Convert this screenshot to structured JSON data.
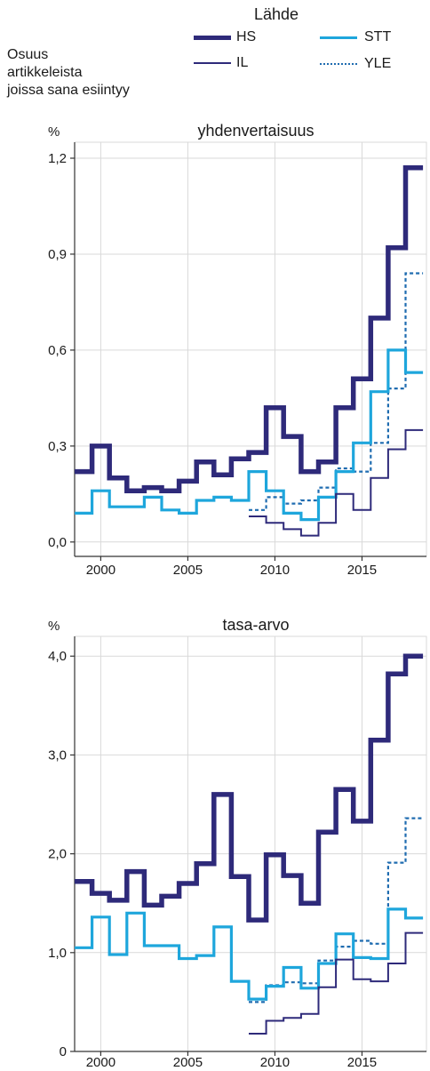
{
  "ylabel": [
    "Osuus",
    "artikkeleista",
    "joissa sana esiintyy"
  ],
  "legend": {
    "title": "Lähde",
    "entries": [
      {
        "name": "HS",
        "color": "#2e2a7a",
        "style": "thick"
      },
      {
        "name": "IL",
        "color": "#2e2a7a",
        "style": "thin"
      },
      {
        "name": "STT",
        "color": "#1ea6dc",
        "style": "medium"
      },
      {
        "name": "YLE",
        "color": "#1f6cb0",
        "style": "dotted"
      }
    ]
  },
  "colors": {
    "HS": "#2e2a7a",
    "IL": "#2e2a7a",
    "STT": "#1ea6dc",
    "YLE": "#1f6cb0",
    "grid": "#d9d9d9",
    "axis": "#333333"
  },
  "chart_data": [
    {
      "type": "line",
      "step": true,
      "title": "yhdenvertaisuus",
      "unit": "%",
      "xlim": [
        1998.5,
        2018.7
      ],
      "ylim": [
        -0.045,
        1.25
      ],
      "yticks": [
        0.0,
        0.3,
        0.6,
        0.9,
        1.2
      ],
      "ytick_labels": [
        "0,0",
        "0,3",
        "0,6",
        "0,9",
        "1,2"
      ],
      "xticks": [
        2000,
        2005,
        2010,
        2015
      ],
      "xtick_labels": [
        "2000",
        "2005",
        "2010",
        "2015"
      ],
      "series": [
        {
          "name": "HS",
          "x": [
            1999,
            2000,
            2001,
            2002,
            2003,
            2004,
            2005,
            2006,
            2007,
            2008,
            2009,
            2010,
            2011,
            2012,
            2013,
            2014,
            2015,
            2016,
            2017,
            2018
          ],
          "values": [
            0.22,
            0.3,
            0.2,
            0.16,
            0.17,
            0.16,
            0.19,
            0.25,
            0.21,
            0.26,
            0.28,
            0.42,
            0.33,
            0.22,
            0.25,
            0.42,
            0.51,
            0.7,
            0.92,
            1.17
          ]
        },
        {
          "name": "IL",
          "x": [
            2009,
            2010,
            2011,
            2012,
            2013,
            2014,
            2015,
            2016,
            2017,
            2018
          ],
          "values": [
            0.08,
            0.06,
            0.04,
            0.02,
            0.06,
            0.15,
            0.1,
            0.2,
            0.29,
            0.35
          ]
        },
        {
          "name": "STT",
          "x": [
            1999,
            2000,
            2001,
            2002,
            2003,
            2004,
            2005,
            2006,
            2007,
            2008,
            2009,
            2010,
            2011,
            2012,
            2013,
            2014,
            2015,
            2016,
            2017,
            2018
          ],
          "values": [
            0.09,
            0.16,
            0.11,
            0.11,
            0.14,
            0.1,
            0.09,
            0.13,
            0.14,
            0.13,
            0.22,
            0.16,
            0.09,
            0.07,
            0.14,
            0.22,
            0.31,
            0.47,
            0.6,
            0.53
          ]
        },
        {
          "name": "YLE",
          "x": [
            2009,
            2010,
            2011,
            2012,
            2013,
            2014,
            2015,
            2016,
            2017,
            2018
          ],
          "values": [
            0.1,
            0.14,
            0.12,
            0.13,
            0.17,
            0.23,
            0.22,
            0.31,
            0.48,
            0.84
          ]
        }
      ]
    },
    {
      "type": "line",
      "step": true,
      "title": "tasa-arvo",
      "unit": "%",
      "xlim": [
        1998.5,
        2018.7
      ],
      "ylim": [
        0,
        4.2
      ],
      "yticks": [
        0,
        1.0,
        2.0,
        3.0,
        4.0
      ],
      "ytick_labels": [
        "0",
        "1,0",
        "2,0",
        "3,0",
        "4,0"
      ],
      "xticks": [
        2000,
        2005,
        2010,
        2015
      ],
      "xtick_labels": [
        "2000",
        "2005",
        "2010",
        "2015"
      ],
      "series": [
        {
          "name": "HS",
          "x": [
            1999,
            2000,
            2001,
            2002,
            2003,
            2004,
            2005,
            2006,
            2007,
            2008,
            2009,
            2010,
            2011,
            2012,
            2013,
            2014,
            2015,
            2016,
            2017,
            2018
          ],
          "values": [
            1.72,
            1.6,
            1.53,
            1.82,
            1.48,
            1.57,
            1.7,
            1.9,
            2.6,
            1.77,
            1.33,
            1.99,
            1.78,
            1.5,
            2.22,
            2.65,
            2.33,
            3.15,
            3.82,
            4.0
          ]
        },
        {
          "name": "IL",
          "x": [
            2009,
            2010,
            2011,
            2012,
            2013,
            2014,
            2015,
            2016,
            2017,
            2018
          ],
          "values": [
            0.18,
            0.31,
            0.34,
            0.38,
            0.65,
            0.93,
            0.73,
            0.71,
            0.89,
            1.2
          ]
        },
        {
          "name": "STT",
          "x": [
            1999,
            2000,
            2001,
            2002,
            2003,
            2004,
            2005,
            2006,
            2007,
            2008,
            2009,
            2010,
            2011,
            2012,
            2013,
            2014,
            2015,
            2016,
            2017,
            2018
          ],
          "values": [
            1.05,
            1.36,
            0.98,
            1.4,
            1.07,
            1.07,
            0.94,
            0.97,
            1.26,
            0.71,
            0.53,
            0.66,
            0.85,
            0.64,
            0.89,
            1.19,
            0.95,
            0.94,
            1.44,
            1.35
          ]
        },
        {
          "name": "YLE",
          "x": [
            2009,
            2010,
            2011,
            2012,
            2013,
            2014,
            2015,
            2016,
            2017,
            2018
          ],
          "values": [
            0.5,
            0.67,
            0.7,
            0.69,
            0.92,
            1.06,
            1.12,
            1.09,
            1.91,
            2.36
          ]
        }
      ]
    }
  ]
}
